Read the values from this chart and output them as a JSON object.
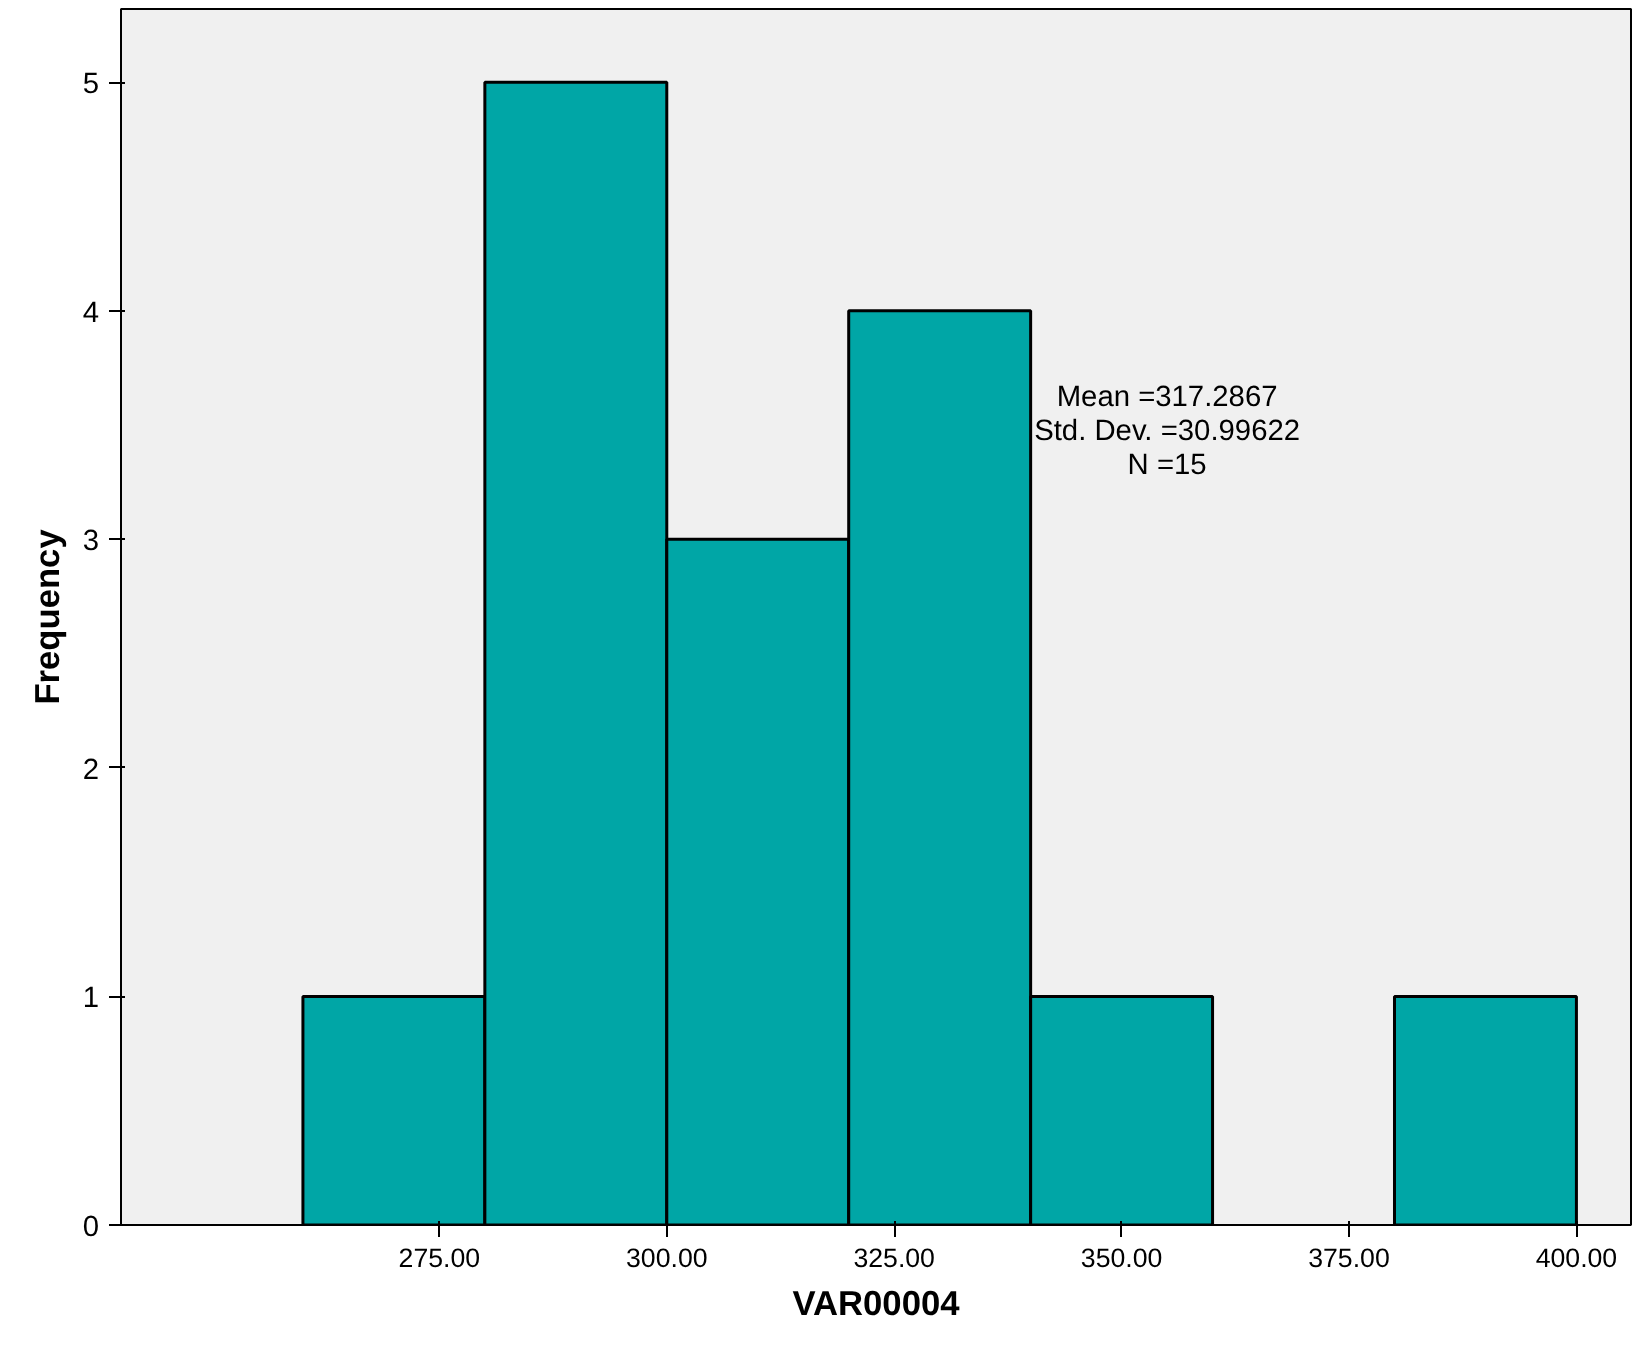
{
  "chart_data": {
    "type": "histogram",
    "xlabel": "VAR00004",
    "ylabel": "Frequency",
    "bins": [
      260,
      280,
      300,
      320,
      340,
      360,
      380,
      400
    ],
    "values": [
      1,
      5,
      3,
      4,
      1,
      0,
      1
    ],
    "color": "#00a6a6",
    "xlim": [
      240,
      406
    ],
    "ylim": [
      0,
      5.32
    ],
    "xticks": [
      {
        "value": 275,
        "label": "275.00"
      },
      {
        "value": 300,
        "label": "300.00"
      },
      {
        "value": 325,
        "label": "325.00"
      },
      {
        "value": 350,
        "label": "350.00"
      },
      {
        "value": 375,
        "label": "375.00"
      },
      {
        "value": 400,
        "label": "400.00"
      }
    ],
    "yticks": [
      0,
      1,
      2,
      3,
      4,
      5
    ],
    "grid": false,
    "annotations": [
      "Mean =317.2867\nStd. Dev. =30.99622\nN =15"
    ]
  }
}
